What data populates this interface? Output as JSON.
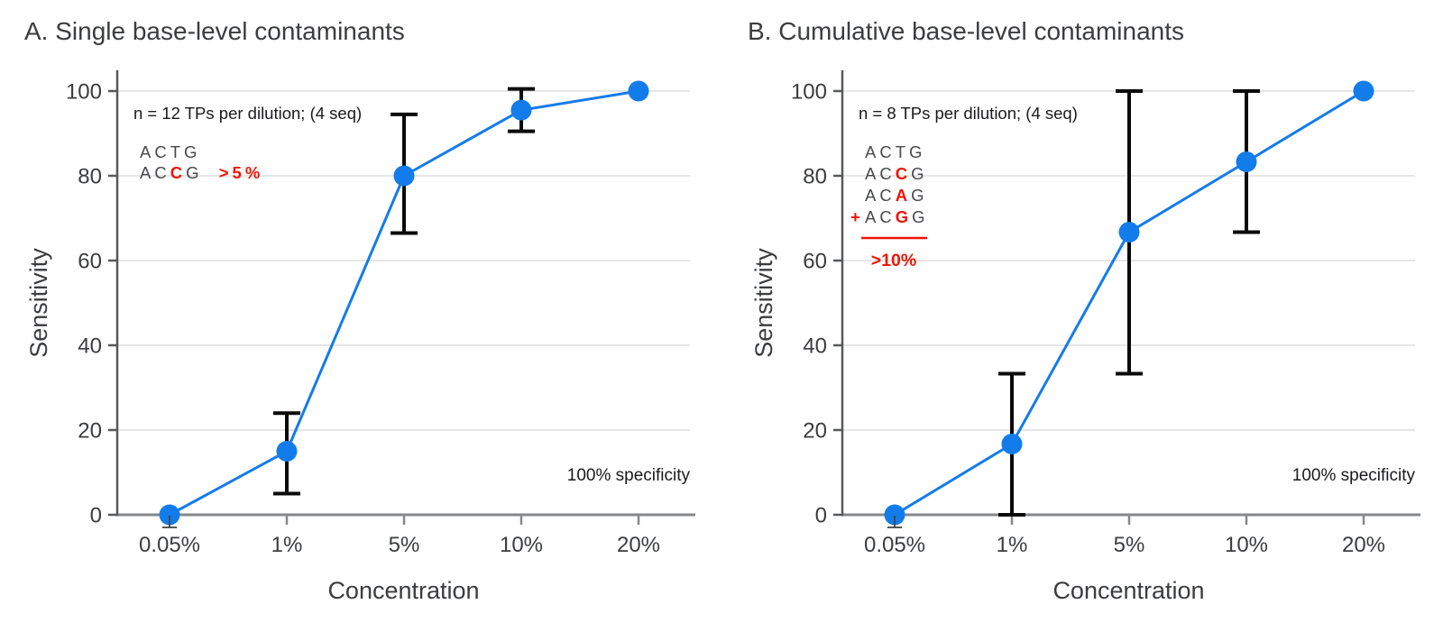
{
  "figure": {
    "background": "#ffffff"
  },
  "colors": {
    "line_blue": "#137CEB",
    "error_black": "#0A0A0A",
    "red": "#EE1507",
    "seq_gray": "#48494D",
    "text_dark": "#1A1A1C",
    "label_gray": "#3B3C3E",
    "grid": "#E6E6E6",
    "axis_y": "#57585A",
    "axis_x": "#85878A",
    "stub": "#454545"
  },
  "chart_data": [
    {
      "type": "line",
      "panel": "A",
      "title": "A. Single base-level contaminants",
      "note": "n = 12 TPs per dilution; (4 seq)",
      "specificity_note": "100% specificity",
      "xlabel": "Concentration",
      "ylabel": "Sensitivity",
      "categories": [
        "0.05%",
        "1%",
        "5%",
        "10%",
        "20%"
      ],
      "y_ticks": [
        0,
        20,
        40,
        60,
        80,
        100
      ],
      "ylim": [
        0,
        100
      ],
      "grid": true,
      "legend": "none",
      "series": [
        {
          "name": "Sensitivity",
          "values": [
            0,
            15,
            80,
            95.5,
            100
          ],
          "error_low": [
            0,
            5,
            66.5,
            90.5,
            null
          ],
          "error_high": [
            0,
            24,
            94.5,
            100.5,
            null
          ]
        }
      ],
      "sequence_annotation": {
        "lines": [
          {
            "segments": [
              {
                "text": "ACTG"
              }
            ]
          },
          {
            "segments": [
              {
                "text": "AC"
              },
              {
                "text": "C",
                "red": true,
                "bold": true
              },
              {
                "text": "G"
              },
              {
                "text": "  "
              },
              {
                "text": ">5%",
                "red": true,
                "bold": true
              }
            ]
          }
        ],
        "sum_line": false,
        "threshold_below": null
      }
    },
    {
      "type": "line",
      "panel": "B",
      "title": "B. Cumulative base-level contaminants",
      "note": "n = 8 TPs per dilution; (4 seq)",
      "specificity_note": "100% specificity",
      "xlabel": "Concentration",
      "ylabel": "Sensitivity",
      "categories": [
        "0.05%",
        "1%",
        "5%",
        "10%",
        "20%"
      ],
      "y_ticks": [
        0,
        20,
        40,
        60,
        80,
        100
      ],
      "ylim": [
        0,
        100
      ],
      "grid": true,
      "legend": "none",
      "series": [
        {
          "name": "Sensitivity",
          "values": [
            0,
            16.7,
            66.7,
            83.3,
            100
          ],
          "error_low": [
            0,
            0,
            33.3,
            66.7,
            null
          ],
          "error_high": [
            0,
            33.3,
            100,
            100,
            null
          ]
        }
      ],
      "sequence_annotation": {
        "lines": [
          {
            "segments": [
              {
                "text": "ACTG"
              }
            ]
          },
          {
            "segments": [
              {
                "text": "AC"
              },
              {
                "text": "C",
                "red": true,
                "bold": true
              },
              {
                "text": "G"
              }
            ]
          },
          {
            "segments": [
              {
                "text": "AC"
              },
              {
                "text": "A",
                "red": true,
                "bold": true
              },
              {
                "text": "G"
              }
            ]
          },
          {
            "prefix": "+",
            "segments": [
              {
                "text": "AC"
              },
              {
                "text": "G",
                "red": true,
                "bold": true
              },
              {
                "text": "G"
              }
            ]
          }
        ],
        "sum_line": true,
        "threshold_below": ">10%"
      }
    }
  ]
}
